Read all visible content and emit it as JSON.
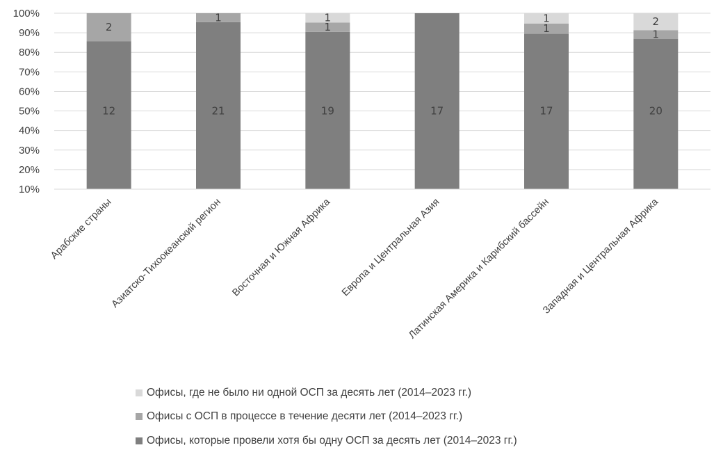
{
  "chart_data": {
    "type": "bar",
    "stacked": true,
    "normalized": true,
    "categories": [
      "Арабские страны",
      "Азиатско-Тихоокеанский регион",
      "Восточная и Южная Африка",
      "Европа и Центральная Азия",
      "Латинская Америка и Карибский бассейн",
      "Западная и Центральная Африка"
    ],
    "series": [
      {
        "name": "Офисы, которые провели хотя бы одну ОСП за десять лет (2014–2023 гг.)",
        "color": "#7f7f7f",
        "values": [
          12,
          21,
          19,
          17,
          17,
          20
        ]
      },
      {
        "name": "Офисы с ОСП в процессе в течение десяти лет (2014–2023 гг.)",
        "color": "#a6a6a6",
        "values": [
          2,
          1,
          1,
          0,
          1,
          1
        ]
      },
      {
        "name": "Офисы, где не было ни одной ОСП за десять лет (2014–2023 гг.)",
        "color": "#d9d9d9",
        "values": [
          0,
          0,
          1,
          0,
          1,
          2
        ]
      }
    ],
    "ylim": [
      10,
      100
    ],
    "yticks": [
      "10%",
      "20%",
      "30%",
      "40%",
      "50%",
      "60%",
      "70%",
      "80%",
      "90%",
      "100%"
    ],
    "grid": true,
    "legend_position": "bottom",
    "legend_order": [
      2,
      1,
      0
    ]
  }
}
